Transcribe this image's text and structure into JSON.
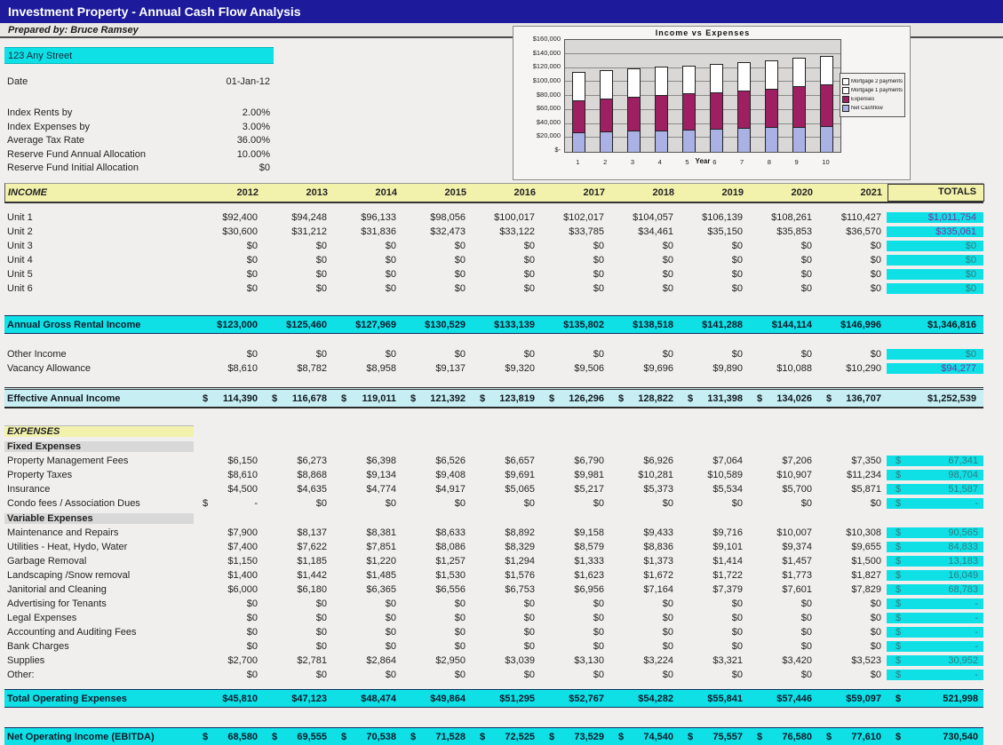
{
  "header": {
    "title": "Investment Property - Annual Cash Flow Analysis",
    "prepared_by": "Prepared by: Bruce Ramsey"
  },
  "property": {
    "address": "123 Any Street",
    "date_label": "Date",
    "date_value": "01-Jan-12",
    "params": [
      {
        "label": "Index Rents by",
        "value": "2.00%"
      },
      {
        "label": "Index Expenses by",
        "value": "3.00%"
      },
      {
        "label": "Average Tax Rate",
        "value": "36.00%"
      },
      {
        "label": "Reserve Fund Annual Allocation",
        "value": "10.00%"
      },
      {
        "label": "Reserve Fund Initial Allocation",
        "value": "$0"
      }
    ]
  },
  "chart_data": {
    "type": "bar",
    "subtype": "stacked",
    "title": "Income vs Expenses",
    "xlabel": "Year",
    "x": [
      "1",
      "2",
      "3",
      "4",
      "5",
      "6",
      "7",
      "8",
      "9",
      "10"
    ],
    "y_ticks": [
      "$160,000",
      "$140,000",
      "$120,000",
      "$100,000",
      "$80,000",
      "$60,000",
      "$40,000",
      "$20,000",
      "$-"
    ],
    "ylim": [
      0,
      160000
    ],
    "grid": true,
    "legend_position": "right",
    "series": [
      {
        "name": "Net Cashflow",
        "color": "#aab1e4",
        "values": [
          28000,
          28975,
          29958,
          30948,
          31945,
          32949,
          33960,
          34977,
          36000,
          37030
        ]
      },
      {
        "name": "Expenses",
        "color": "#9e2063",
        "values": [
          45810,
          47123,
          48474,
          49864,
          51295,
          52767,
          54282,
          55841,
          57446,
          59097
        ]
      },
      {
        "name": "Mortgage 1 payments",
        "color": "#ffffff",
        "values": [
          40580,
          40580,
          40580,
          40580,
          40580,
          40580,
          40580,
          40580,
          40580,
          40580
        ]
      },
      {
        "name": "Mortgage 2 payments",
        "color": "#ffffff",
        "values": [
          0,
          0,
          0,
          0,
          0,
          0,
          0,
          0,
          0,
          0
        ]
      }
    ],
    "legend": [
      {
        "label": "Mortgage 2 payments",
        "color": "#ffffff"
      },
      {
        "label": "Mortgage 1 payments",
        "color": "#ffffff"
      },
      {
        "label": "Expenses",
        "color": "#9e2063"
      },
      {
        "label": "Net Cashflow",
        "color": "#aab1e4"
      }
    ]
  },
  "table": {
    "header": {
      "label": "INCOME",
      "years": [
        "2012",
        "2013",
        "2014",
        "2015",
        "2016",
        "2017",
        "2018",
        "2019",
        "2020",
        "2021"
      ],
      "totals_label": "TOTALS"
    },
    "rows": [
      {
        "type": "header"
      },
      {
        "type": "gap",
        "h": 8
      },
      {
        "type": "data",
        "label": "Unit 1",
        "values": [
          "$92,400",
          "$94,248",
          "$96,133",
          "$98,056",
          "$100,017",
          "$102,017",
          "$104,057",
          "$106,139",
          "$108,261",
          "$110,427"
        ],
        "total": "$1,011,754",
        "totalColor": "purple",
        "totalsCyan": true
      },
      {
        "type": "data",
        "label": "Unit 2",
        "values": [
          "$30,600",
          "$31,212",
          "$31,836",
          "$32,473",
          "$33,122",
          "$33,785",
          "$34,461",
          "$35,150",
          "$35,853",
          "$36,570"
        ],
        "total": "$335,061",
        "totalColor": "purple",
        "totalsCyan": true
      },
      {
        "type": "data",
        "label": "Unit 3",
        "values": [
          "$0",
          "$0",
          "$0",
          "$0",
          "$0",
          "$0",
          "$0",
          "$0",
          "$0",
          "$0"
        ],
        "total": "$0",
        "totalColor": "teal",
        "totalsCyan": true
      },
      {
        "type": "data",
        "label": "Unit 4",
        "values": [
          "$0",
          "$0",
          "$0",
          "$0",
          "$0",
          "$0",
          "$0",
          "$0",
          "$0",
          "$0"
        ],
        "total": "$0",
        "totalColor": "teal",
        "totalsCyan": true
      },
      {
        "type": "data",
        "label": "Unit 5",
        "values": [
          "$0",
          "$0",
          "$0",
          "$0",
          "$0",
          "$0",
          "$0",
          "$0",
          "$0",
          "$0"
        ],
        "total": "$0",
        "totalColor": "teal",
        "totalsCyan": true
      },
      {
        "type": "data",
        "label": "Unit 6",
        "values": [
          "$0",
          "$0",
          "$0",
          "$0",
          "$0",
          "$0",
          "$0",
          "$0",
          "$0",
          "$0"
        ],
        "total": "$0",
        "totalColor": "teal",
        "totalsCyan": true
      },
      {
        "type": "gap",
        "h": 22
      },
      {
        "type": "band",
        "label": "Annual Gross Rental Income",
        "values": [
          "$123,000",
          "$125,460",
          "$127,969",
          "$130,529",
          "$133,139",
          "$135,802",
          "$138,518",
          "$141,288",
          "$144,114",
          "$146,996"
        ],
        "total": "$1,346,816",
        "totalColor": "dark"
      },
      {
        "type": "gap",
        "h": 15
      },
      {
        "type": "data",
        "label": "Other Income",
        "values": [
          "$0",
          "$0",
          "$0",
          "$0",
          "$0",
          "$0",
          "$0",
          "$0",
          "$0",
          "$0"
        ],
        "total": "$0",
        "totalColor": "teal",
        "totalsCyan": true
      },
      {
        "type": "data",
        "label": "Vacancy Allowance",
        "values": [
          "$8,610",
          "$8,782",
          "$8,958",
          "$9,137",
          "$9,320",
          "$9,506",
          "$9,696",
          "$9,890",
          "$10,088",
          "$10,290"
        ],
        "total": "$94,277",
        "totalColor": "purple",
        "totalsCyan": true
      },
      {
        "type": "gap",
        "h": 13
      },
      {
        "type": "effective",
        "label": "Effective Annual Income",
        "values": [
          "$|114,390",
          "$|116,678",
          "$|119,011",
          "$|121,392",
          "$|123,819",
          "$|126,296",
          "$|128,822",
          "$|131,398",
          "$|134,026",
          "$|136,707"
        ],
        "total": "$1,252,539",
        "totalColor": "dark"
      },
      {
        "type": "gap",
        "h": 17
      },
      {
        "type": "secY",
        "label": "EXPENSES"
      },
      {
        "type": "secG",
        "label": "Fixed Expenses"
      },
      {
        "type": "expense",
        "label": "Property Management Fees",
        "values": [
          "$6,150",
          "$6,273",
          "$6,398",
          "$6,526",
          "$6,657",
          "$6,790",
          "$6,926",
          "$7,064",
          "$7,206",
          "$7,350"
        ],
        "total": "$|67,341"
      },
      {
        "type": "expense",
        "label": "Property Taxes",
        "values": [
          "$8,610",
          "$8,868",
          "$9,134",
          "$9,408",
          "$9,691",
          "$9,981",
          "$10,281",
          "$10,589",
          "$10,907",
          "$11,234"
        ],
        "total": "$|98,704"
      },
      {
        "type": "expense",
        "label": "Insurance",
        "values": [
          "$4,500",
          "$4,635",
          "$4,774",
          "$4,917",
          "$5,065",
          "$5,217",
          "$5,373",
          "$5,534",
          "$5,700",
          "$5,871"
        ],
        "total": "$|51,587"
      },
      {
        "type": "expense",
        "label": "Condo fees / Association Dues",
        "values": [
          "$|-",
          "$0",
          "$0",
          "$0",
          "$0",
          "$0",
          "$0",
          "$0",
          "$0",
          "$0"
        ],
        "total": "$|-"
      },
      {
        "type": "secG",
        "label": "Variable Expenses",
        "totalsCyan": true
      },
      {
        "type": "expense",
        "label": "Maintenance and Repairs",
        "values": [
          "$7,900",
          "$8,137",
          "$8,381",
          "$8,633",
          "$8,892",
          "$9,158",
          "$9,433",
          "$9,716",
          "$10,007",
          "$10,308"
        ],
        "total": "$|90,565"
      },
      {
        "type": "expense",
        "label": "Utilities - Heat, Hydo, Water",
        "values": [
          "$7,400",
          "$7,622",
          "$7,851",
          "$8,086",
          "$8,329",
          "$8,579",
          "$8,836",
          "$9,101",
          "$9,374",
          "$9,655"
        ],
        "total": "$|84,833"
      },
      {
        "type": "expense",
        "label": "Garbage Removal",
        "values": [
          "$1,150",
          "$1,185",
          "$1,220",
          "$1,257",
          "$1,294",
          "$1,333",
          "$1,373",
          "$1,414",
          "$1,457",
          "$1,500"
        ],
        "total": "$|13,183"
      },
      {
        "type": "expense",
        "label": "Landscaping /Snow removal",
        "values": [
          "$1,400",
          "$1,442",
          "$1,485",
          "$1,530",
          "$1,576",
          "$1,623",
          "$1,672",
          "$1,722",
          "$1,773",
          "$1,827"
        ],
        "total": "$|16,049"
      },
      {
        "type": "expense",
        "label": "Janitorial and Cleaning",
        "values": [
          "$6,000",
          "$6,180",
          "$6,365",
          "$6,556",
          "$6,753",
          "$6,956",
          "$7,164",
          "$7,379",
          "$7,601",
          "$7,829"
        ],
        "total": "$|68,783"
      },
      {
        "type": "expense",
        "label": "Advertising for Tenants",
        "values": [
          "$0",
          "$0",
          "$0",
          "$0",
          "$0",
          "$0",
          "$0",
          "$0",
          "$0",
          "$0"
        ],
        "total": "$|-"
      },
      {
        "type": "expense",
        "label": "Legal Expenses",
        "values": [
          "$0",
          "$0",
          "$0",
          "$0",
          "$0",
          "$0",
          "$0",
          "$0",
          "$0",
          "$0"
        ],
        "total": "$|-"
      },
      {
        "type": "expense",
        "label": "Accounting and Auditing Fees",
        "values": [
          "$0",
          "$0",
          "$0",
          "$0",
          "$0",
          "$0",
          "$0",
          "$0",
          "$0",
          "$0"
        ],
        "total": "$|-"
      },
      {
        "type": "expense",
        "label": "Bank Charges",
        "values": [
          "$0",
          "$0",
          "$0",
          "$0",
          "$0",
          "$0",
          "$0",
          "$0",
          "$0",
          "$0"
        ],
        "total": "$|-"
      },
      {
        "type": "expense",
        "label": "Supplies",
        "values": [
          "$2,700",
          "$2,781",
          "$2,864",
          "$2,950",
          "$3,039",
          "$3,130",
          "$3,224",
          "$3,321",
          "$3,420",
          "$3,523"
        ],
        "total": "$|30,952"
      },
      {
        "type": "expense",
        "label": "Other:",
        "values": [
          "$0",
          "$0",
          "$0",
          "$0",
          "$0",
          "$0",
          "$0",
          "$0",
          "$0",
          "$0"
        ],
        "total": "$|-"
      },
      {
        "type": "gap",
        "h": 8
      },
      {
        "type": "band",
        "label": "Total Operating Expenses",
        "values": [
          "$45,810",
          "$47,123",
          "$48,474",
          "$49,864",
          "$51,295",
          "$52,767",
          "$54,282",
          "$55,841",
          "$57,446",
          "$59,097"
        ],
        "total": "$|521,998",
        "totalColor": "dark"
      },
      {
        "type": "gap",
        "h": 22
      },
      {
        "type": "band",
        "label": "Net Operating Income (EBITDA)",
        "values": [
          "$|68,580",
          "$|69,555",
          "$|70,538",
          "$|71,528",
          "$|72,525",
          "$|73,529",
          "$|74,540",
          "$|75,557",
          "$|76,580",
          "$|77,610"
        ],
        "total": "$|730,540",
        "totalColor": "dark"
      }
    ]
  }
}
